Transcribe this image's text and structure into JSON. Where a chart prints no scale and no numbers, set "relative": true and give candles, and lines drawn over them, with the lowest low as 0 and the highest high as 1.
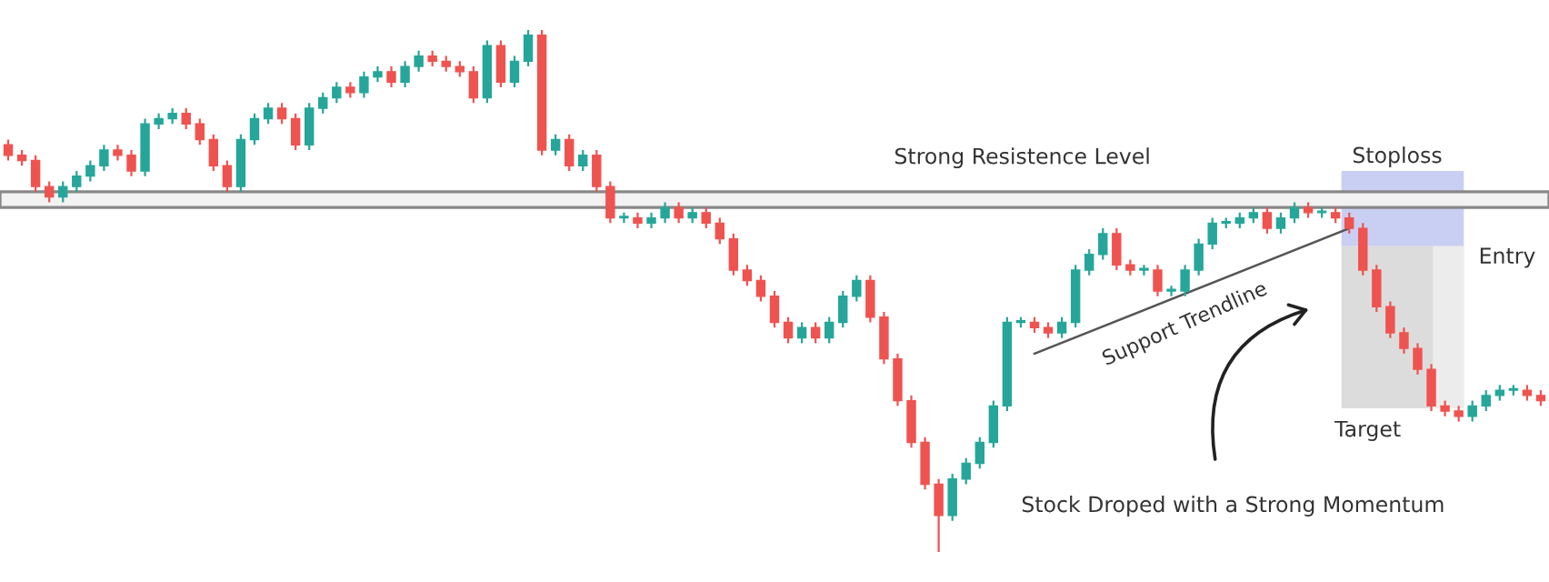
{
  "chart_data": {
    "type": "candlestick",
    "relative": true,
    "categories": [
      null,
      null,
      null,
      null,
      null,
      null,
      null,
      null,
      null,
      null,
      null,
      null,
      null,
      null,
      null,
      null,
      null,
      null,
      null,
      null,
      null,
      null,
      null,
      null,
      null,
      null,
      null,
      null,
      null,
      null,
      null,
      null,
      null,
      null,
      null,
      null,
      null,
      null,
      null,
      null,
      null,
      null,
      null,
      null,
      null,
      null,
      null,
      null,
      null,
      null,
      null,
      null,
      null,
      null,
      null,
      null,
      null,
      null,
      null,
      null,
      null,
      null,
      null,
      null,
      null,
      null,
      null,
      null,
      null,
      null,
      null,
      null,
      null,
      null,
      null,
      null,
      null,
      null,
      null,
      null,
      null,
      null,
      null,
      null,
      null,
      null,
      null,
      null,
      null,
      null,
      null,
      null,
      null,
      null,
      null,
      null,
      null,
      null,
      null,
      null,
      null,
      null,
      null,
      null,
      null,
      null,
      null,
      null,
      null,
      null,
      null,
      null,
      null
    ],
    "ohlc": [
      [
        0.78,
        0.79,
        0.75,
        0.76
      ],
      [
        0.76,
        0.77,
        0.74,
        0.75
      ],
      [
        0.75,
        0.76,
        0.69,
        0.7
      ],
      [
        0.7,
        0.71,
        0.67,
        0.68
      ],
      [
        0.68,
        0.71,
        0.67,
        0.7
      ],
      [
        0.7,
        0.73,
        0.69,
        0.72
      ],
      [
        0.72,
        0.75,
        0.71,
        0.74
      ],
      [
        0.74,
        0.78,
        0.73,
        0.77
      ],
      [
        0.77,
        0.78,
        0.75,
        0.76
      ],
      [
        0.76,
        0.77,
        0.72,
        0.73
      ],
      [
        0.73,
        0.83,
        0.72,
        0.82
      ],
      [
        0.82,
        0.84,
        0.81,
        0.83
      ],
      [
        0.83,
        0.85,
        0.82,
        0.84
      ],
      [
        0.84,
        0.85,
        0.81,
        0.82
      ],
      [
        0.82,
        0.83,
        0.78,
        0.79
      ],
      [
        0.79,
        0.8,
        0.73,
        0.74
      ],
      [
        0.74,
        0.75,
        0.69,
        0.7
      ],
      [
        0.7,
        0.8,
        0.69,
        0.79
      ],
      [
        0.79,
        0.84,
        0.78,
        0.83
      ],
      [
        0.83,
        0.86,
        0.82,
        0.85
      ],
      [
        0.85,
        0.86,
        0.82,
        0.83
      ],
      [
        0.83,
        0.84,
        0.77,
        0.78
      ],
      [
        0.78,
        0.86,
        0.77,
        0.85
      ],
      [
        0.85,
        0.88,
        0.84,
        0.87
      ],
      [
        0.87,
        0.9,
        0.86,
        0.89
      ],
      [
        0.89,
        0.9,
        0.87,
        0.88
      ],
      [
        0.88,
        0.92,
        0.87,
        0.91
      ],
      [
        0.91,
        0.93,
        0.9,
        0.92
      ],
      [
        0.92,
        0.93,
        0.89,
        0.9
      ],
      [
        0.9,
        0.94,
        0.89,
        0.93
      ],
      [
        0.93,
        0.96,
        0.92,
        0.95
      ],
      [
        0.95,
        0.96,
        0.93,
        0.94
      ],
      [
        0.94,
        0.95,
        0.92,
        0.93
      ],
      [
        0.93,
        0.94,
        0.91,
        0.92
      ],
      [
        0.92,
        0.93,
        0.86,
        0.87
      ],
      [
        0.87,
        0.98,
        0.86,
        0.97
      ],
      [
        0.97,
        0.98,
        0.89,
        0.9
      ],
      [
        0.9,
        0.95,
        0.89,
        0.94
      ],
      [
        0.94,
        1.0,
        0.93,
        0.99
      ],
      [
        0.99,
        1.0,
        0.76,
        0.77
      ],
      [
        0.77,
        0.8,
        0.76,
        0.79
      ],
      [
        0.79,
        0.8,
        0.73,
        0.74
      ],
      [
        0.74,
        0.77,
        0.73,
        0.76
      ],
      [
        0.76,
        0.77,
        0.69,
        0.7
      ],
      [
        0.7,
        0.71,
        0.63,
        0.64
      ],
      [
        0.64,
        0.65,
        0.63,
        0.64
      ],
      [
        0.64,
        0.65,
        0.62,
        0.63
      ],
      [
        0.63,
        0.65,
        0.62,
        0.64
      ],
      [
        0.64,
        0.67,
        0.63,
        0.66
      ],
      [
        0.66,
        0.67,
        0.63,
        0.64
      ],
      [
        0.64,
        0.66,
        0.63,
        0.65
      ],
      [
        0.65,
        0.66,
        0.62,
        0.63
      ],
      [
        0.63,
        0.64,
        0.59,
        0.6
      ],
      [
        0.6,
        0.61,
        0.53,
        0.54
      ],
      [
        0.54,
        0.55,
        0.51,
        0.52
      ],
      [
        0.52,
        0.53,
        0.48,
        0.49
      ],
      [
        0.49,
        0.5,
        0.43,
        0.44
      ],
      [
        0.44,
        0.45,
        0.4,
        0.41
      ],
      [
        0.41,
        0.44,
        0.4,
        0.43
      ],
      [
        0.43,
        0.44,
        0.4,
        0.41
      ],
      [
        0.41,
        0.45,
        0.4,
        0.44
      ],
      [
        0.44,
        0.5,
        0.43,
        0.49
      ],
      [
        0.49,
        0.53,
        0.48,
        0.52
      ],
      [
        0.52,
        0.53,
        0.44,
        0.45
      ],
      [
        0.45,
        0.46,
        0.36,
        0.37
      ],
      [
        0.37,
        0.38,
        0.28,
        0.29
      ],
      [
        0.29,
        0.3,
        0.2,
        0.21
      ],
      [
        0.21,
        0.22,
        0.12,
        0.13
      ],
      [
        0.13,
        0.14,
        0.0,
        0.07
      ],
      [
        0.07,
        0.15,
        0.06,
        0.14
      ],
      [
        0.14,
        0.18,
        0.13,
        0.17
      ],
      [
        0.17,
        0.22,
        0.16,
        0.21
      ],
      [
        0.21,
        0.29,
        0.2,
        0.28
      ],
      [
        0.28,
        0.45,
        0.27,
        0.44
      ],
      [
        0.44,
        0.45,
        0.43,
        0.44
      ],
      [
        0.44,
        0.45,
        0.42,
        0.43
      ],
      [
        0.43,
        0.44,
        0.41,
        0.42
      ],
      [
        0.42,
        0.45,
        0.41,
        0.44
      ],
      [
        0.44,
        0.55,
        0.43,
        0.54
      ],
      [
        0.54,
        0.58,
        0.53,
        0.57
      ],
      [
        0.57,
        0.62,
        0.56,
        0.61
      ],
      [
        0.61,
        0.62,
        0.54,
        0.55
      ],
      [
        0.55,
        0.56,
        0.53,
        0.54
      ],
      [
        0.54,
        0.55,
        0.53,
        0.54
      ],
      [
        0.54,
        0.55,
        0.49,
        0.5
      ],
      [
        0.5,
        0.51,
        0.49,
        0.5
      ],
      [
        0.5,
        0.55,
        0.49,
        0.54
      ],
      [
        0.54,
        0.6,
        0.53,
        0.59
      ],
      [
        0.59,
        0.64,
        0.58,
        0.63
      ],
      [
        0.63,
        0.64,
        0.62,
        0.63
      ],
      [
        0.63,
        0.65,
        0.62,
        0.64
      ],
      [
        0.64,
        0.66,
        0.63,
        0.65
      ],
      [
        0.65,
        0.66,
        0.61,
        0.62
      ],
      [
        0.62,
        0.65,
        0.61,
        0.64
      ],
      [
        0.64,
        0.67,
        0.63,
        0.66
      ],
      [
        0.66,
        0.67,
        0.64,
        0.65
      ],
      [
        0.65,
        0.66,
        0.64,
        0.65
      ],
      [
        0.65,
        0.66,
        0.63,
        0.64
      ],
      [
        0.64,
        0.65,
        0.61,
        0.62
      ],
      [
        0.62,
        0.63,
        0.53,
        0.54
      ],
      [
        0.54,
        0.55,
        0.46,
        0.47
      ],
      [
        0.47,
        0.48,
        0.41,
        0.42
      ],
      [
        0.42,
        0.43,
        0.38,
        0.39
      ],
      [
        0.39,
        0.4,
        0.34,
        0.35
      ],
      [
        0.35,
        0.36,
        0.27,
        0.28
      ],
      [
        0.28,
        0.29,
        0.26,
        0.27
      ],
      [
        0.27,
        0.28,
        0.25,
        0.26
      ],
      [
        0.26,
        0.29,
        0.25,
        0.28
      ],
      [
        0.28,
        0.31,
        0.27,
        0.3
      ],
      [
        0.3,
        0.32,
        0.29,
        0.31
      ],
      [
        0.31,
        0.32,
        0.3,
        0.31
      ],
      [
        0.31,
        0.32,
        0.29,
        0.3
      ],
      [
        0.3,
        0.31,
        0.28,
        0.29
      ]
    ],
    "series": [
      {
        "type": "line",
        "values": [
          null,
          null,
          null,
          null,
          null,
          null,
          null,
          null,
          null,
          null,
          null,
          null,
          null,
          null,
          null,
          null,
          null,
          null,
          null,
          null,
          null,
          null,
          null,
          null,
          null,
          null,
          null,
          null,
          null,
          null,
          null,
          null,
          null,
          null,
          null,
          null,
          null,
          null,
          null,
          null,
          null,
          null,
          null,
          null,
          null,
          null,
          null,
          null,
          null,
          null,
          null,
          null,
          null,
          null,
          null,
          null,
          null,
          null,
          null,
          null,
          null,
          null,
          null,
          null,
          null,
          null,
          null,
          null,
          null,
          null,
          null,
          null,
          null,
          null,
          null,
          0.38,
          null,
          null,
          null,
          null,
          null,
          null,
          null,
          null,
          null,
          null,
          null,
          null,
          null,
          null,
          null,
          null,
          null,
          null,
          null,
          null,
          null,
          null,
          0.62,
          null,
          null,
          null,
          null,
          null,
          null,
          null,
          null,
          null,
          null,
          null,
          null,
          null,
          null
        ],
        "color": "#555555"
      }
    ],
    "bands": [
      {
        "axis": "y",
        "from": 0.66,
        "to": 0.69,
        "label": "Strong Resistence Level",
        "color": "#f2f2f2"
      }
    ],
    "annotations": [
      "Stoploss",
      "Entry",
      "Target",
      "Support Trendline",
      "Stock Droped with a Strong Momentum"
    ]
  }
}
